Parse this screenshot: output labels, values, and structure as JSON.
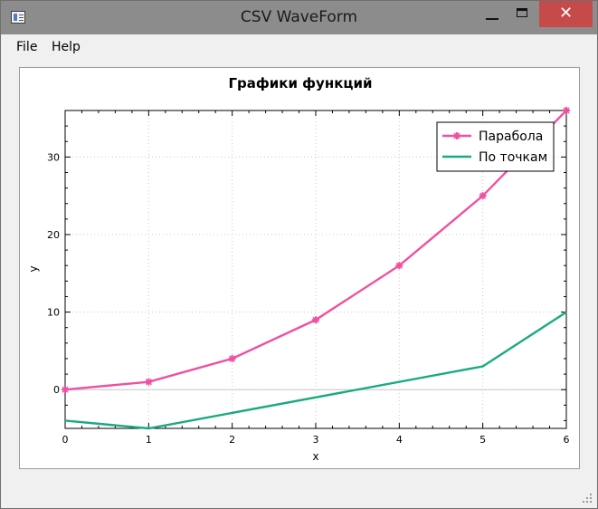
{
  "window": {
    "title": "CSV WaveForm"
  },
  "menu": {
    "file": "File",
    "help": "Help"
  },
  "chart_data": {
    "type": "line",
    "title": "Графики функций",
    "xlabel": "x",
    "ylabel": "y",
    "xlim": [
      0,
      6
    ],
    "ylim": [
      -5,
      36
    ],
    "xticks": [
      0,
      1,
      2,
      3,
      4,
      5,
      6
    ],
    "yticks": [
      0,
      10,
      20,
      30
    ],
    "grid": true,
    "legend_position": "top-right",
    "series": [
      {
        "name": "Парабола",
        "color": "#f050a0",
        "marker": "star",
        "x": [
          0,
          1,
          2,
          3,
          4,
          5,
          6
        ],
        "y": [
          0,
          1,
          4,
          9,
          16,
          25,
          36
        ]
      },
      {
        "name": "По точкам",
        "color": "#1aaa80",
        "marker": "none",
        "x": [
          0,
          1,
          5,
          6
        ],
        "y": [
          -4,
          -5,
          3,
          10
        ]
      }
    ]
  }
}
